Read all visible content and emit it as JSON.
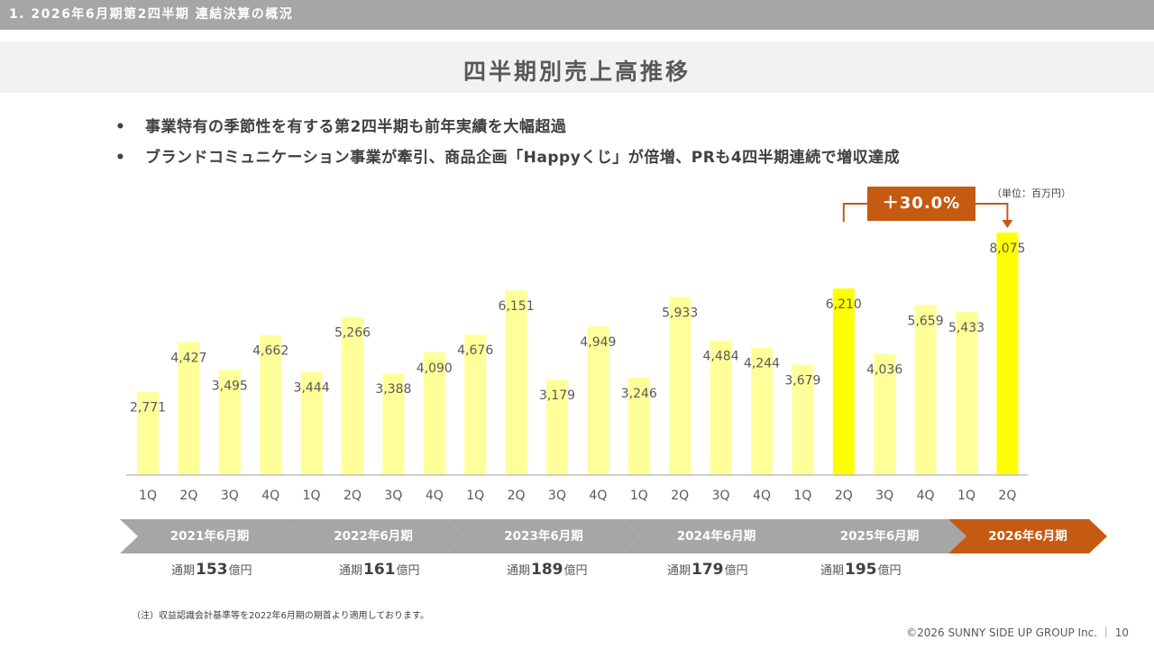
{
  "section_title": "1. 2026年6月期第2四半期 連結決算の概況",
  "page_title": "四半期別売上高推移",
  "bullets": [
    "事業特有の季節性を有する第2四半期も前年実績を大幅超過",
    "ブランドコミュニケーション事業が牽引、商品企画「Happyくじ」が倍増、PRも4四半期連続で増収達成"
  ],
  "bullet_marker": "•",
  "unit_note": "（単位：百万円）",
  "growth_badge": "＋30.0%",
  "chart_data": {
    "type": "bar",
    "categories": [
      "1Q",
      "2Q",
      "3Q",
      "4Q",
      "1Q",
      "2Q",
      "3Q",
      "4Q",
      "1Q",
      "2Q",
      "3Q",
      "4Q",
      "1Q",
      "2Q",
      "3Q",
      "4Q",
      "1Q",
      "2Q",
      "3Q",
      "4Q",
      "1Q",
      "2Q"
    ],
    "values": [
      2771,
      4427,
      3495,
      4662,
      3444,
      5266,
      3388,
      4090,
      4676,
      6151,
      3179,
      4949,
      3246,
      5933,
      4484,
      4244,
      3679,
      6210,
      4036,
      5659,
      5433,
      8075
    ],
    "value_labels": [
      "2,771",
      "4,427",
      "3,495",
      "4,662",
      "3,444",
      "5,266",
      "3,388",
      "4,090",
      "4,676",
      "6,151",
      "3,179",
      "4,949",
      "3,246",
      "5,933",
      "4,484",
      "4,244",
      "3,679",
      "6,210",
      "4,036",
      "5,659",
      "5,433",
      "8,075"
    ],
    "highlighted": [
      17,
      21
    ],
    "ylim": [
      0,
      8075
    ],
    "colors": {
      "normal": "#ffff99",
      "highlight": "#ffff00",
      "axis": "#bfbfbf",
      "arrow": "#c55a11"
    }
  },
  "fiscal_years": [
    {
      "label": "2021年6月期",
      "total_prefix": "通期",
      "total_value": "153",
      "total_suffix": "億円"
    },
    {
      "label": "2022年6月期",
      "total_prefix": "通期",
      "total_value": "161",
      "total_suffix": "億円"
    },
    {
      "label": "2023年6月期",
      "total_prefix": "通期",
      "total_value": "189",
      "total_suffix": "億円"
    },
    {
      "label": "2024年6月期",
      "total_prefix": "通期",
      "total_value": "179",
      "total_suffix": "億円"
    },
    {
      "label": "2025年6月期",
      "total_prefix": "通期",
      "total_value": "195",
      "total_suffix": "億円"
    },
    {
      "label": "2026年6月期"
    }
  ],
  "footnote": "（注）収益認識会計基準等を2022年6月期の期首より適用しております。",
  "copyright": "©2026 SUNNY SIDE UP GROUP Inc. ｜ 10"
}
